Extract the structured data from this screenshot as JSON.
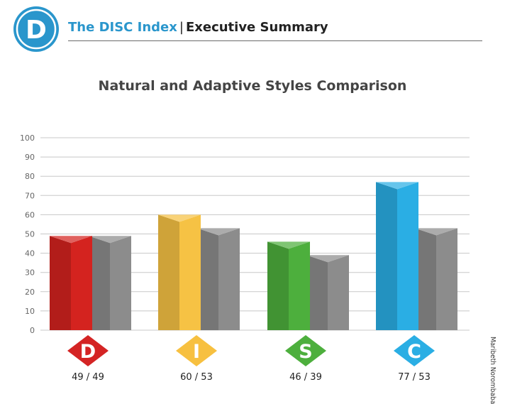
{
  "header": {
    "logo_letter": "D",
    "brand": "The DISC Index",
    "separator": "|",
    "subtitle": "Executive Summary"
  },
  "author_name": "Maribeth Norombaba",
  "colors": {
    "brand": "#2a96cc",
    "grid": "#c8c8c8",
    "axis_text": "#666666",
    "adaptive_gray": "#8c8c8c"
  },
  "chart_data": {
    "type": "bar",
    "title": "Natural and Adaptive Styles Comparison",
    "xlabel": "",
    "ylabel": "",
    "ylim": [
      0,
      100
    ],
    "yticks": [
      0,
      10,
      20,
      30,
      40,
      50,
      60,
      70,
      80,
      90,
      100
    ],
    "grid": true,
    "categories": [
      "D",
      "I",
      "S",
      "C"
    ],
    "value_labels": [
      "49 / 49",
      "60 / 53",
      "46 / 39",
      "77 / 53"
    ],
    "series": [
      {
        "values": [
          49,
          60,
          46,
          77
        ],
        "colors": [
          "#d4231f",
          "#f6c244",
          "#4daf3d",
          "#2aaee4"
        ]
      },
      {
        "values": [
          49,
          53,
          39,
          53
        ],
        "colors": [
          "#8c8c8c",
          "#8c8c8c",
          "#8c8c8c",
          "#8c8c8c"
        ]
      }
    ],
    "icon_colors": [
      "#d42424",
      "#f7c040",
      "#4daf3d",
      "#2aaee4"
    ]
  }
}
